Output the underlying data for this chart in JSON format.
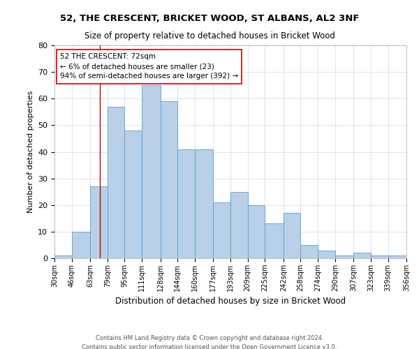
{
  "title": "52, THE CRESCENT, BRICKET WOOD, ST ALBANS, AL2 3NF",
  "subtitle": "Size of property relative to detached houses in Bricket Wood",
  "xlabel": "Distribution of detached houses by size in Bricket Wood",
  "ylabel": "Number of detached properties",
  "bar_values": [
    1,
    10,
    27,
    57,
    48,
    65,
    59,
    41,
    41,
    21,
    25,
    20,
    13,
    17,
    5,
    3,
    1,
    2,
    1,
    1
  ],
  "bin_labels": [
    "30sqm",
    "46sqm",
    "63sqm",
    "79sqm",
    "95sqm",
    "111sqm",
    "128sqm",
    "144sqm",
    "160sqm",
    "177sqm",
    "193sqm",
    "209sqm",
    "225sqm",
    "242sqm",
    "258sqm",
    "274sqm",
    "290sqm",
    "307sqm",
    "323sqm",
    "339sqm",
    "356sqm"
  ],
  "bin_edges": [
    30,
    46,
    63,
    79,
    95,
    111,
    128,
    144,
    160,
    177,
    193,
    209,
    225,
    242,
    258,
    274,
    290,
    307,
    323,
    339,
    356
  ],
  "bar_color": "#b8d0e8",
  "bar_edge_color": "#5a9fd4",
  "vline_x": 72,
  "vline_color": "#cc0000",
  "annotation_text": "52 THE CRESCENT: 72sqm\n← 6% of detached houses are smaller (23)\n94% of semi-detached houses are larger (392) →",
  "annotation_box_color": "#ffffff",
  "annotation_box_edge": "#cc0000",
  "ylim": [
    0,
    80
  ],
  "yticks": [
    0,
    10,
    20,
    30,
    40,
    50,
    60,
    70,
    80
  ],
  "footer_line1": "Contains HM Land Registry data © Crown copyright and database right 2024.",
  "footer_line2": "Contains public sector information licensed under the Open Government Licence v3.0.",
  "bg_color": "#ffffff",
  "grid_color": "#d0d8e8"
}
